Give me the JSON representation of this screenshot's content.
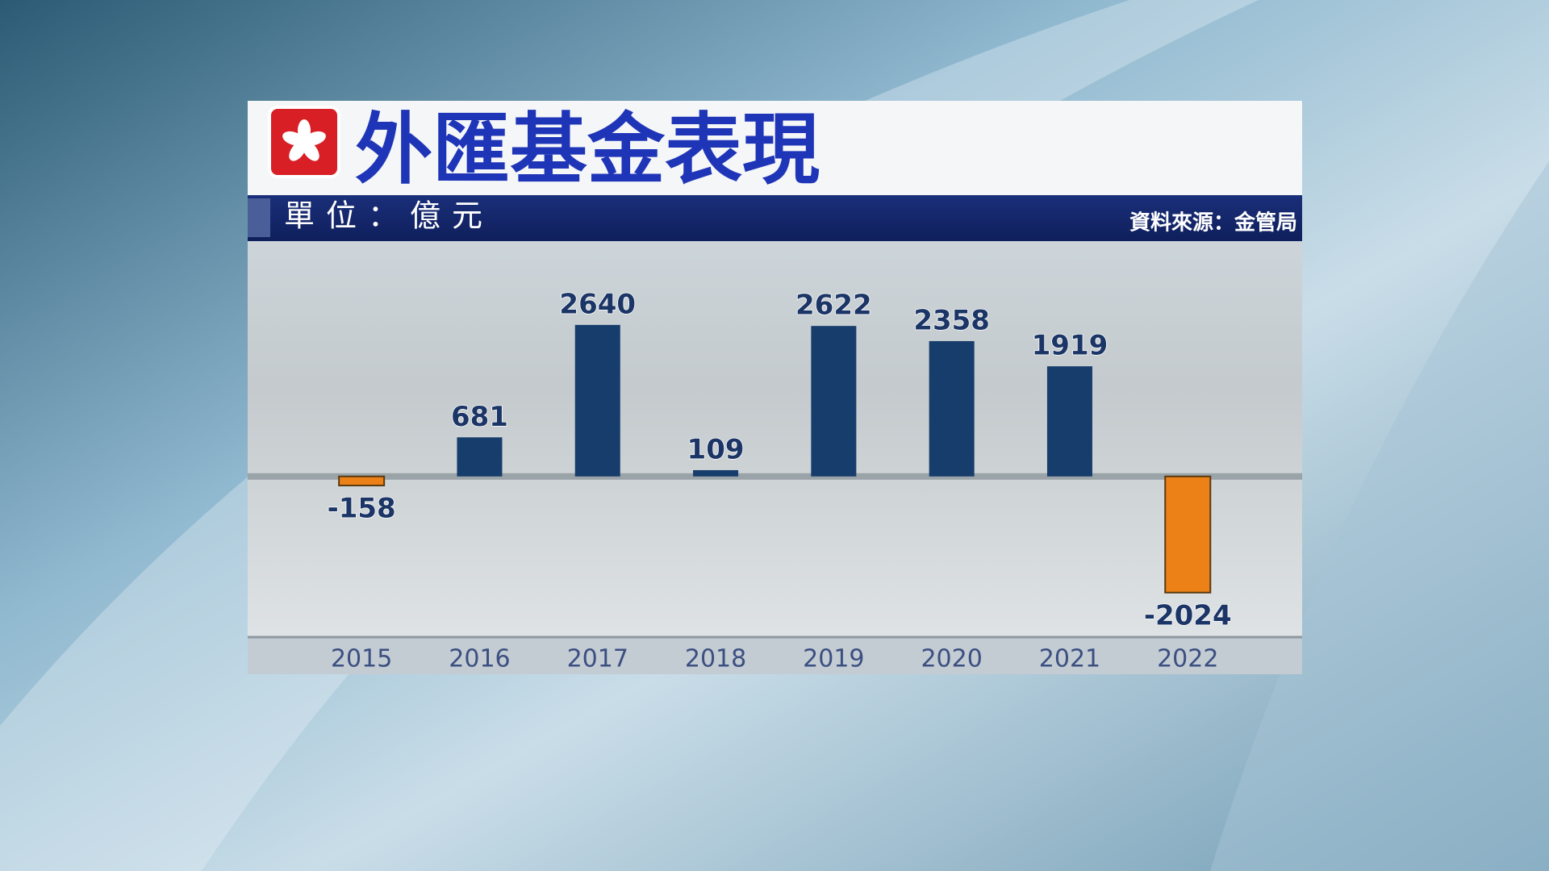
{
  "chart_data": {
    "type": "bar",
    "title": "外匯基金表現",
    "subtitle": "單位：億元",
    "source": "資料來源：金管局",
    "categories": [
      "2015",
      "2016",
      "2017",
      "2018",
      "2019",
      "2020",
      "2021",
      "2022"
    ],
    "values": [
      -158,
      681,
      2640,
      109,
      2622,
      2358,
      1919,
      -2024
    ],
    "color": "#163d6b",
    "negative_color": "#ec8118",
    "ylim": [
      -2800,
      4100
    ]
  }
}
